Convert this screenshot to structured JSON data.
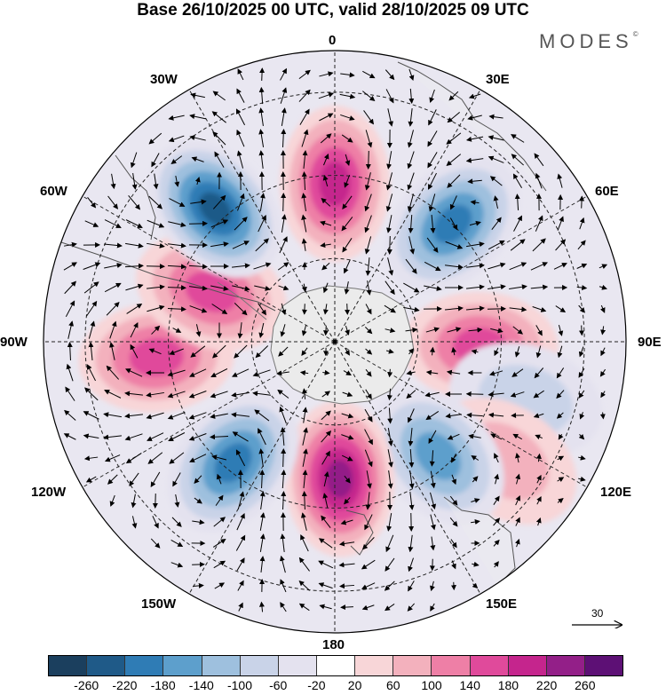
{
  "title": "Base 26/10/2025 00 UTC, valid 28/10/2025 09 UTC",
  "brand": "MODES",
  "brand_mark": "©",
  "lon_labels": {
    "top": "0",
    "top_right": "30E",
    "upper_right": "60E",
    "right": "90E",
    "lower_right": "120E",
    "bottom_right": "150E",
    "bottom": "180",
    "bottom_left": "150W",
    "lower_left": "120W",
    "left": "90W",
    "upper_left": "60W",
    "top_left": "30W"
  },
  "reference_vector": {
    "value": "30"
  },
  "colorbar": {
    "colors": [
      "#1b3f5e",
      "#1f5a88",
      "#2f7cb5",
      "#5d9fcc",
      "#9ec0de",
      "#c9d3e8",
      "#e4e2ef",
      "#ffffff",
      "#f8d6d8",
      "#f3b1bd",
      "#ee7fa6",
      "#e04a9b",
      "#c5258d",
      "#931f88",
      "#5d1075"
    ],
    "tick_labels": [
      "-260",
      "-220",
      "-180",
      "-140",
      "-100",
      "-60",
      "-20",
      "20",
      "60",
      "100",
      "140",
      "180",
      "220",
      "260"
    ]
  },
  "anomaly_centers": [
    {
      "id": "high-0",
      "lon": 0,
      "lat": -52,
      "value": 200
    },
    {
      "id": "low-45e",
      "lon": 45,
      "lat": -50,
      "value": -200
    },
    {
      "id": "high-90e",
      "lon": 92,
      "lat": -55,
      "value": 170
    },
    {
      "id": "low-105e",
      "lon": 107,
      "lat": -42,
      "value": -90
    },
    {
      "id": "high-120e",
      "lon": 125,
      "lat": -40,
      "value": 90
    },
    {
      "id": "low-140e",
      "lon": 138,
      "lat": -53,
      "value": -170
    },
    {
      "id": "high-180",
      "lon": 178,
      "lat": -57,
      "value": 230
    },
    {
      "id": "low-140w",
      "lon": -140,
      "lat": -52,
      "value": -180
    },
    {
      "id": "high-95w",
      "lon": -95,
      "lat": -47,
      "value": 150
    },
    {
      "id": "high-70w",
      "lon": -68,
      "lat": -58,
      "value": 150
    },
    {
      "id": "low-45w",
      "lon": -42,
      "lat": -47,
      "value": -230
    }
  ]
}
